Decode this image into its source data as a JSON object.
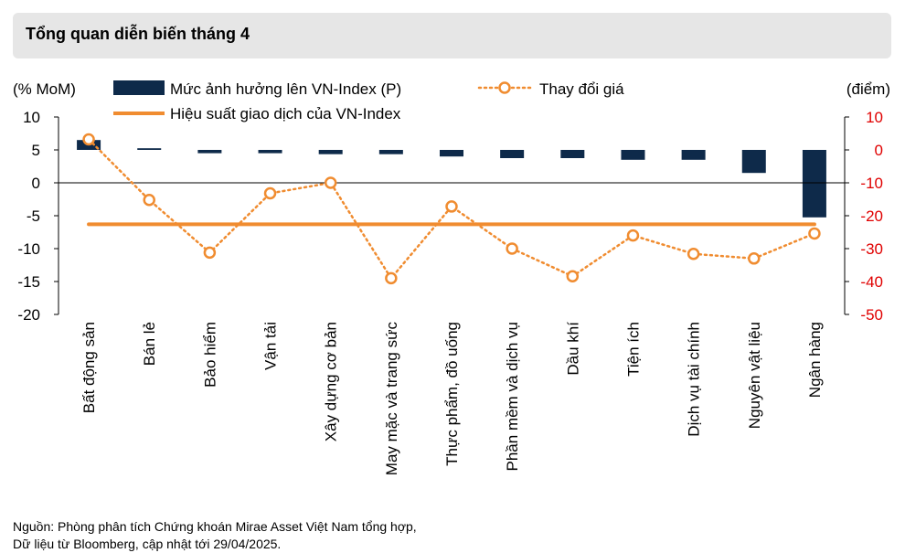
{
  "title": "Tổng quan diễn biến tháng 4",
  "source_lines": [
    "Nguồn: Phòng phân tích Chứng khoán Mirae Asset Việt Nam tổng hợp,",
    "Dữ liệu từ Bloomberg, cập nhật tới 29/04/2025."
  ],
  "colors": {
    "bar": "#0e2a4a",
    "price_line": "#f08c30",
    "index_line": "#f08c30",
    "right_axis": "#e00000",
    "title_bg": "#e6e6e6"
  },
  "chart_data": {
    "type": "bar",
    "categories": [
      "Bất động sản",
      "Bán lẻ",
      "Bảo hiểm",
      "Vận tải",
      "Xây dựng cơ bản",
      "May mặc và trang sức",
      "Thực phẩm, đồ uống",
      "Phần mềm và dịch vụ",
      "Dầu khí",
      "Tiện ích",
      "Dịch vụ tài chính",
      "Nguyên vật liệu",
      "Ngân hàng"
    ],
    "left_axis_label": "(% MoM)",
    "right_axis_label": "(điểm)",
    "left_ylim": [
      -20,
      10
    ],
    "right_ylim": [
      -50,
      10
    ],
    "left_ticks": [
      10,
      5,
      0,
      -5,
      -10,
      -15,
      -20
    ],
    "right_ticks": [
      10,
      0,
      -10,
      -20,
      -30,
      -40,
      -50
    ],
    "series": [
      {
        "name": "Mức ảnh hưởng lên VN-Index (P)",
        "kind": "bar",
        "axis": "right",
        "values": [
          3,
          0.5,
          -1,
          -1,
          -1.3,
          -1.3,
          -2,
          -2.5,
          -2.5,
          -3,
          -3,
          -7,
          -20.5
        ]
      },
      {
        "name": "Thay đổi giá",
        "kind": "dotted-line-markers",
        "axis": "left",
        "values": [
          6.6,
          -2.6,
          -10.6,
          -1.6,
          0,
          -14.5,
          -3.6,
          -10,
          -14.2,
          -8,
          -10.8,
          -11.5,
          -7.7
        ]
      },
      {
        "name": "Hiệu suất giao dịch của VN-Index",
        "kind": "horizontal-line",
        "axis": "left",
        "value": -6.3
      }
    ],
    "legend_position": "top",
    "grid": false
  }
}
